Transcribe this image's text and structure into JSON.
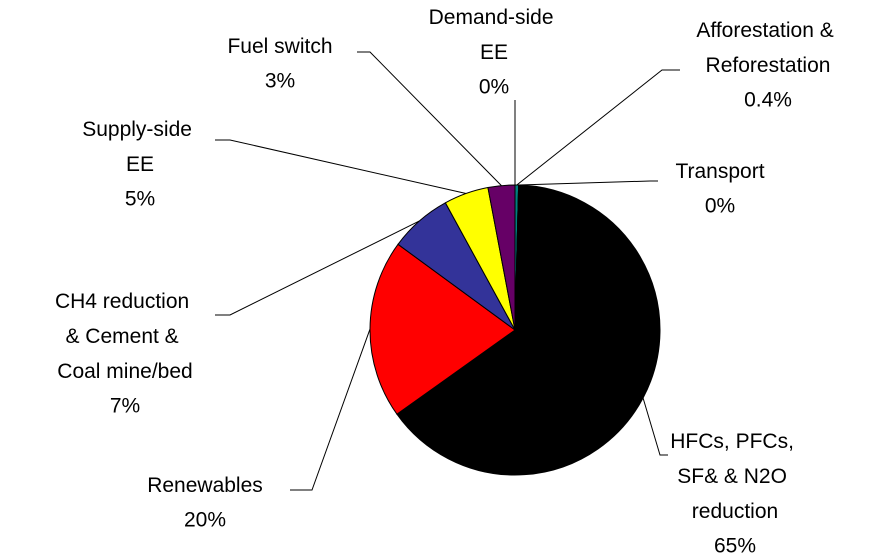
{
  "chart_data": {
    "type": "pie",
    "categories": [
      "Afforestation & Reforestation",
      "Transport",
      "HFCs, PFCs, SF& & N2O reduction",
      "Renewables",
      "CH4 reduction & Cement & Coal mine/bed",
      "Supply-side EE",
      "Fuel switch",
      "Demand-side EE"
    ],
    "values": [
      0.4,
      0,
      65,
      20,
      7,
      5,
      3,
      0
    ],
    "value_labels": [
      "0.4%",
      "0%",
      "65%",
      "20%",
      "7%",
      "5%",
      "3%",
      "0%"
    ],
    "colors": [
      "#007f7f",
      "#808080",
      "#000000",
      "#ff0000",
      "#333399",
      "#ffff00",
      "#660066",
      "#ccccff"
    ]
  }
}
